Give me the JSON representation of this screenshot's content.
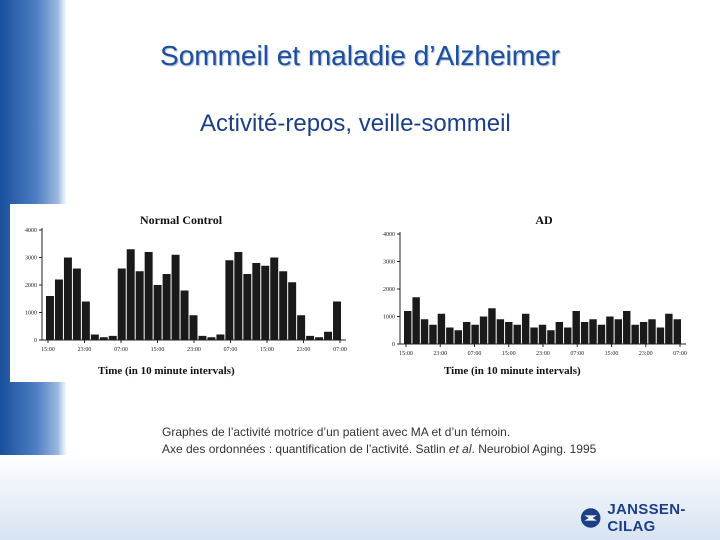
{
  "slide": {
    "title": "Sommeil et maladie d’Alzheimer",
    "subtitle": "Activité-repos, veille-sommeil"
  },
  "caption": {
    "line1": "Graphes de l’activité motrice d’un patient avec MA et d’un témoin.",
    "line2_prefix": "Axe des ordonnées : quantification de l’activité. Satlin ",
    "line2_italic": "et al",
    "line2_suffix": ". Neurobiol Aging. 1995"
  },
  "logo": {
    "text": "JANSSEN-CILAG",
    "icon": "janssen-logo-icon"
  },
  "colors": {
    "title": "#1f4e9a",
    "subtitle": "#1c3f85",
    "band": "#1a4f9c"
  },
  "chart_data": [
    {
      "type": "bar",
      "title": "Normal Control",
      "xlabel": "Time (in 10 minute intervals)",
      "ylabel": "",
      "yticks": [
        "0",
        "1000",
        "2000",
        "3000",
        "4000"
      ],
      "xticks": [
        "15:00",
        "23:00",
        "07:00",
        "15:00",
        "23:00",
        "07:00",
        "15:00",
        "23:00",
        "07:00"
      ],
      "ylim": [
        0,
        4000
      ],
      "x": [
        "15:00",
        "17:00",
        "19:00",
        "21:00",
        "23:00",
        "01:00",
        "03:00",
        "05:00",
        "07:00",
        "09:00",
        "11:00",
        "13:00",
        "15:00",
        "17:00",
        "19:00",
        "21:00",
        "23:00",
        "01:00",
        "03:00",
        "05:00",
        "07:00",
        "09:00",
        "11:00",
        "13:00",
        "15:00",
        "17:00",
        "19:00",
        "21:00",
        "23:00",
        "01:00",
        "03:00",
        "05:00",
        "07:00"
      ],
      "values": [
        1600,
        2200,
        3000,
        2600,
        1400,
        200,
        100,
        150,
        2600,
        3300,
        2500,
        3200,
        2000,
        2400,
        3100,
        1800,
        900,
        150,
        100,
        200,
        2900,
        3200,
        2400,
        2800,
        2700,
        3000,
        2500,
        2100,
        900,
        150,
        100,
        300,
        1400
      ]
    },
    {
      "type": "bar",
      "title": "AD",
      "xlabel": "Time (in 10 minute intervals)",
      "ylabel": "",
      "yticks": [
        "0",
        "1000",
        "2000",
        "3000",
        "4000"
      ],
      "xticks": [
        "15:00",
        "23:00",
        "07:00",
        "15:00",
        "23:00",
        "07:00",
        "15:00",
        "23:00",
        "07:00"
      ],
      "ylim": [
        0,
        4000
      ],
      "x": [
        "15:00",
        "17:00",
        "19:00",
        "21:00",
        "23:00",
        "01:00",
        "03:00",
        "05:00",
        "07:00",
        "09:00",
        "11:00",
        "13:00",
        "15:00",
        "17:00",
        "19:00",
        "21:00",
        "23:00",
        "01:00",
        "03:00",
        "05:00",
        "07:00",
        "09:00",
        "11:00",
        "13:00",
        "15:00",
        "17:00",
        "19:00",
        "21:00",
        "23:00",
        "01:00",
        "03:00",
        "05:00",
        "07:00"
      ],
      "values": [
        1200,
        1700,
        900,
        700,
        1100,
        600,
        500,
        800,
        700,
        1000,
        1300,
        900,
        800,
        700,
        1100,
        600,
        700,
        500,
        800,
        600,
        1200,
        800,
        900,
        700,
        1000,
        900,
        1200,
        700,
        800,
        900,
        600,
        1100,
        900
      ]
    }
  ]
}
